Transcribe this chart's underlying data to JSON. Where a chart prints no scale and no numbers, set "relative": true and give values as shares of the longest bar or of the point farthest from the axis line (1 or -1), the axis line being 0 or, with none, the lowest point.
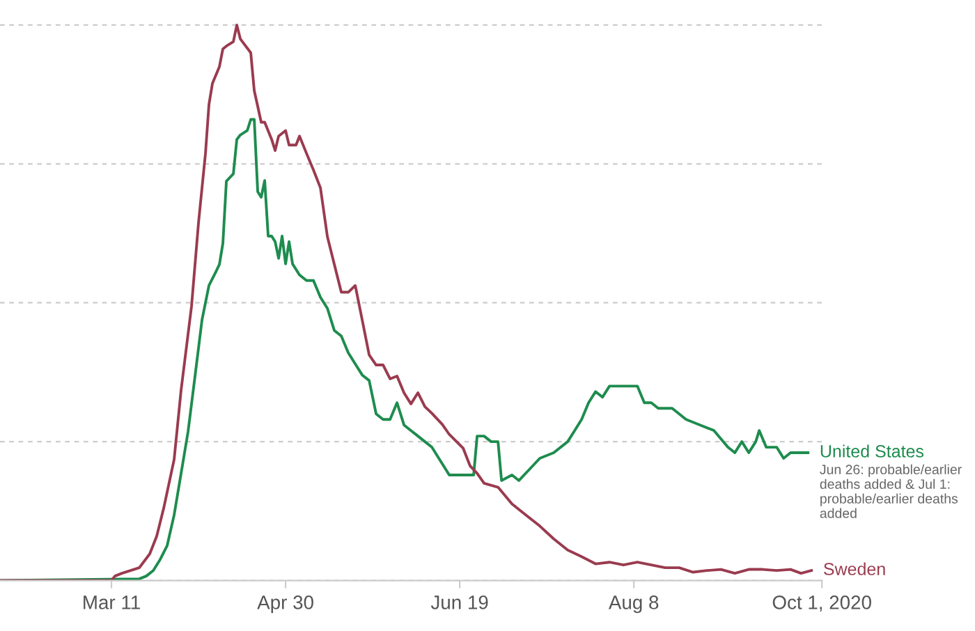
{
  "chart_data": {
    "type": "line",
    "relative": true,
    "grid": "y",
    "legend": false,
    "line_style": "solid",
    "xlim": [
      "2020-02-08",
      "2020-10-01"
    ],
    "xticks": [
      {
        "value": "2020-03-11",
        "label": "Mar 11"
      },
      {
        "value": "2020-04-30",
        "label": "Apr 30"
      },
      {
        "value": "2020-06-19",
        "label": "Jun 19"
      },
      {
        "value": "2020-08-08",
        "label": "Aug 8"
      },
      {
        "value": "2020-10-01",
        "label": "Oct 1, 2020"
      }
    ],
    "annotations": [
      {
        "text": "Jun 26: probable/earlier deaths added & Jul 1: probable/earlier deaths added",
        "x": "2020-09-27",
        "y": 0.23
      }
    ],
    "series": [
      {
        "name": "United States",
        "color": "#1e8c4e",
        "x": [
          "2020-02-08",
          "2020-03-19",
          "2020-03-21",
          "2020-03-23",
          "2020-03-25",
          "2020-03-27",
          "2020-03-29",
          "2020-03-31",
          "2020-04-02",
          "2020-04-04",
          "2020-04-06",
          "2020-04-08",
          "2020-04-10",
          "2020-04-11",
          "2020-04-12",
          "2020-04-13",
          "2020-04-15",
          "2020-04-16",
          "2020-04-17",
          "2020-04-19",
          "2020-04-20",
          "2020-04-21",
          "2020-04-22",
          "2020-04-23",
          "2020-04-24",
          "2020-04-25",
          "2020-04-26",
          "2020-04-27",
          "2020-04-28",
          "2020-04-29",
          "2020-04-30",
          "2020-05-01",
          "2020-05-02",
          "2020-05-04",
          "2020-05-06",
          "2020-05-08",
          "2020-05-10",
          "2020-05-12",
          "2020-05-14",
          "2020-05-16",
          "2020-05-18",
          "2020-05-20",
          "2020-05-22",
          "2020-05-24",
          "2020-05-26",
          "2020-05-28",
          "2020-05-30",
          "2020-06-01",
          "2020-06-03",
          "2020-06-05",
          "2020-06-07",
          "2020-06-09",
          "2020-06-11",
          "2020-06-14",
          "2020-06-16",
          "2020-06-19",
          "2020-06-23",
          "2020-06-24",
          "2020-06-26",
          "2020-06-28",
          "2020-06-30",
          "2020-07-01",
          "2020-07-04",
          "2020-07-06",
          "2020-07-09",
          "2020-07-12",
          "2020-07-16",
          "2020-07-20",
          "2020-07-22",
          "2020-07-24",
          "2020-07-26",
          "2020-07-28",
          "2020-07-30",
          "2020-08-01",
          "2020-08-03",
          "2020-08-05",
          "2020-08-07",
          "2020-08-09",
          "2020-08-11",
          "2020-08-13",
          "2020-08-15",
          "2020-08-19",
          "2020-08-23",
          "2020-08-27",
          "2020-08-31",
          "2020-09-04",
          "2020-09-06",
          "2020-09-08",
          "2020-09-10",
          "2020-09-12",
          "2020-09-13",
          "2020-09-15",
          "2020-09-18",
          "2020-09-20",
          "2020-09-22",
          "2020-09-25",
          "2020-09-27"
        ],
        "values": [
          0,
          0.003,
          0.008,
          0.018,
          0.038,
          0.063,
          0.118,
          0.193,
          0.268,
          0.368,
          0.469,
          0.531,
          0.556,
          0.569,
          0.607,
          0.719,
          0.732,
          0.794,
          0.802,
          0.81,
          0.83,
          0.83,
          0.7,
          0.69,
          0.72,
          0.62,
          0.62,
          0.61,
          0.58,
          0.62,
          0.57,
          0.61,
          0.57,
          0.55,
          0.54,
          0.54,
          0.51,
          0.49,
          0.45,
          0.44,
          0.41,
          0.39,
          0.37,
          0.36,
          0.3,
          0.29,
          0.29,
          0.32,
          0.28,
          0.27,
          0.26,
          0.25,
          0.24,
          0.21,
          0.19,
          0.19,
          0.19,
          0.26,
          0.26,
          0.25,
          0.25,
          0.18,
          0.19,
          0.18,
          0.2,
          0.22,
          0.23,
          0.25,
          0.27,
          0.29,
          0.32,
          0.34,
          0.33,
          0.35,
          0.35,
          0.35,
          0.35,
          0.35,
          0.32,
          0.32,
          0.31,
          0.31,
          0.29,
          0.28,
          0.27,
          0.24,
          0.23,
          0.25,
          0.23,
          0.25,
          0.27,
          0.24,
          0.24,
          0.22,
          0.23,
          0.23,
          0.23
        ]
      },
      {
        "name": "Sweden",
        "color": "#9a3b4f",
        "x": [
          "2020-02-08",
          "2020-03-11",
          "2020-03-12",
          "2020-03-14",
          "2020-03-19",
          "2020-03-22",
          "2020-03-24",
          "2020-03-26",
          "2020-03-29",
          "2020-03-31",
          "2020-04-03",
          "2020-04-05",
          "2020-04-07",
          "2020-04-08",
          "2020-04-09",
          "2020-04-11",
          "2020-04-12",
          "2020-04-13",
          "2020-04-15",
          "2020-04-16",
          "2020-04-17",
          "2020-04-20",
          "2020-04-21",
          "2020-04-23",
          "2020-04-24",
          "2020-04-26",
          "2020-04-27",
          "2020-04-28",
          "2020-04-30",
          "2020-05-01",
          "2020-05-03",
          "2020-05-04",
          "2020-05-06",
          "2020-05-08",
          "2020-05-10",
          "2020-05-12",
          "2020-05-14",
          "2020-05-16",
          "2020-05-18",
          "2020-05-20",
          "2020-05-22",
          "2020-05-24",
          "2020-05-26",
          "2020-05-28",
          "2020-05-30",
          "2020-06-01",
          "2020-06-03",
          "2020-06-05",
          "2020-06-07",
          "2020-06-09",
          "2020-06-11",
          "2020-06-14",
          "2020-06-16",
          "2020-06-20",
          "2020-06-22",
          "2020-06-24",
          "2020-06-26",
          "2020-06-30",
          "2020-07-04",
          "2020-07-08",
          "2020-07-12",
          "2020-07-16",
          "2020-07-20",
          "2020-07-24",
          "2020-07-28",
          "2020-08-01",
          "2020-08-05",
          "2020-08-09",
          "2020-08-13",
          "2020-08-17",
          "2020-08-21",
          "2020-08-25",
          "2020-08-29",
          "2020-09-02",
          "2020-09-06",
          "2020-09-10",
          "2020-09-14",
          "2020-09-18",
          "2020-09-22",
          "2020-09-25",
          "2020-09-28"
        ],
        "values": [
          0,
          0,
          0.008,
          0.013,
          0.023,
          0.048,
          0.08,
          0.13,
          0.218,
          0.343,
          0.494,
          0.644,
          0.769,
          0.857,
          0.895,
          0.925,
          0.957,
          0.962,
          0.97,
          1,
          0.975,
          0.95,
          0.882,
          0.825,
          0.825,
          0.794,
          0.774,
          0.8,
          0.81,
          0.784,
          0.784,
          0.8,
          0.769,
          0.739,
          0.707,
          0.619,
          0.569,
          0.519,
          0.519,
          0.531,
          0.469,
          0.406,
          0.388,
          0.388,
          0.363,
          0.368,
          0.338,
          0.318,
          0.338,
          0.313,
          0.301,
          0.281,
          0.263,
          0.238,
          0.206,
          0.193,
          0.175,
          0.168,
          0.138,
          0.118,
          0.098,
          0.075,
          0.055,
          0.043,
          0.03,
          0.033,
          0.028,
          0.033,
          0.028,
          0.023,
          0.023,
          0.015,
          0.018,
          0.02,
          0.013,
          0.02,
          0.02,
          0.018,
          0.02,
          0.013,
          0.018
        ]
      }
    ]
  }
}
